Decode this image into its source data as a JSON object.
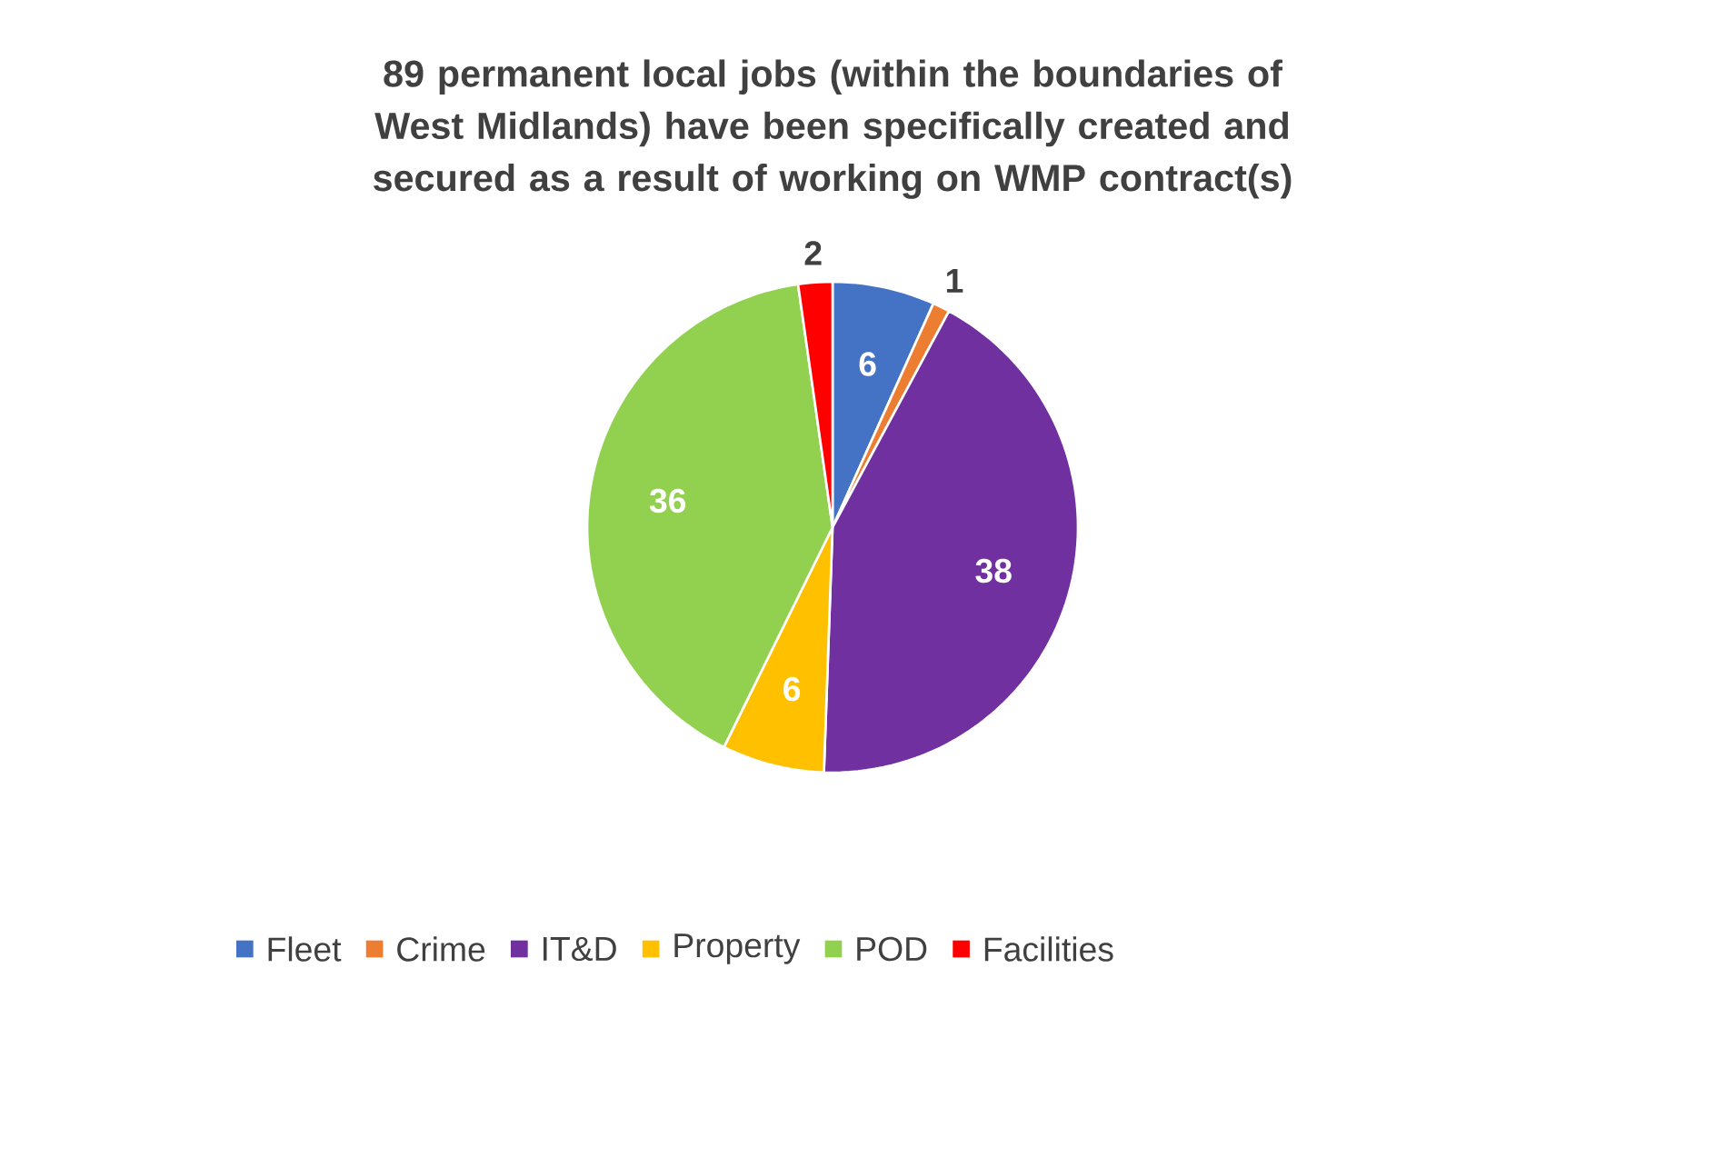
{
  "chart_data": {
    "type": "pie",
    "title": "89 permanent local jobs (within the boundaries of West Midlands) have been specifically created and secured as a result of working on WMP contract(s)",
    "categories": [
      "Fleet",
      "Crime",
      "IT&D",
      "Property",
      "POD",
      "Facilities"
    ],
    "values": [
      6,
      1,
      38,
      6,
      36,
      2
    ],
    "colors": [
      "#4472c4",
      "#ed7d31",
      "#7030a0",
      "#ffc000",
      "#92d050",
      "#ff0000"
    ],
    "data_labels": true,
    "legend": "bottom"
  }
}
